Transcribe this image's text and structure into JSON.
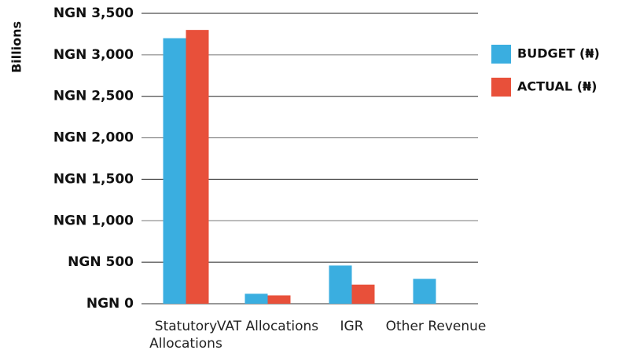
{
  "chart_data": {
    "type": "bar",
    "y_label": "Billions",
    "categories": [
      "Statutory Allocations",
      "VAT Allocations",
      "IGR",
      "Other Revenue"
    ],
    "series": [
      {
        "name": "BUDGET (₦)",
        "color": "#3aaee0",
        "values": [
          3200,
          120,
          460,
          300
        ]
      },
      {
        "name": "ACTUAL (₦)",
        "color": "#e8503a",
        "values": [
          3300,
          100,
          230,
          null
        ]
      }
    ],
    "ylim": [
      0,
      3500
    ],
    "yticks": [
      {
        "value": 0,
        "label": "NGN 0"
      },
      {
        "value": 500,
        "label": "NGN 500"
      },
      {
        "value": 1000,
        "label": "NGN 1,000"
      },
      {
        "value": 1500,
        "label": "NGN 1,500"
      },
      {
        "value": 2000,
        "label": "NGN 2,000"
      },
      {
        "value": 2500,
        "label": "NGN 2,500"
      },
      {
        "value": 3000,
        "label": "NGN 3,000"
      },
      {
        "value": 3500,
        "label": "NGN 3,500"
      }
    ],
    "grid": true,
    "legend": "right"
  }
}
